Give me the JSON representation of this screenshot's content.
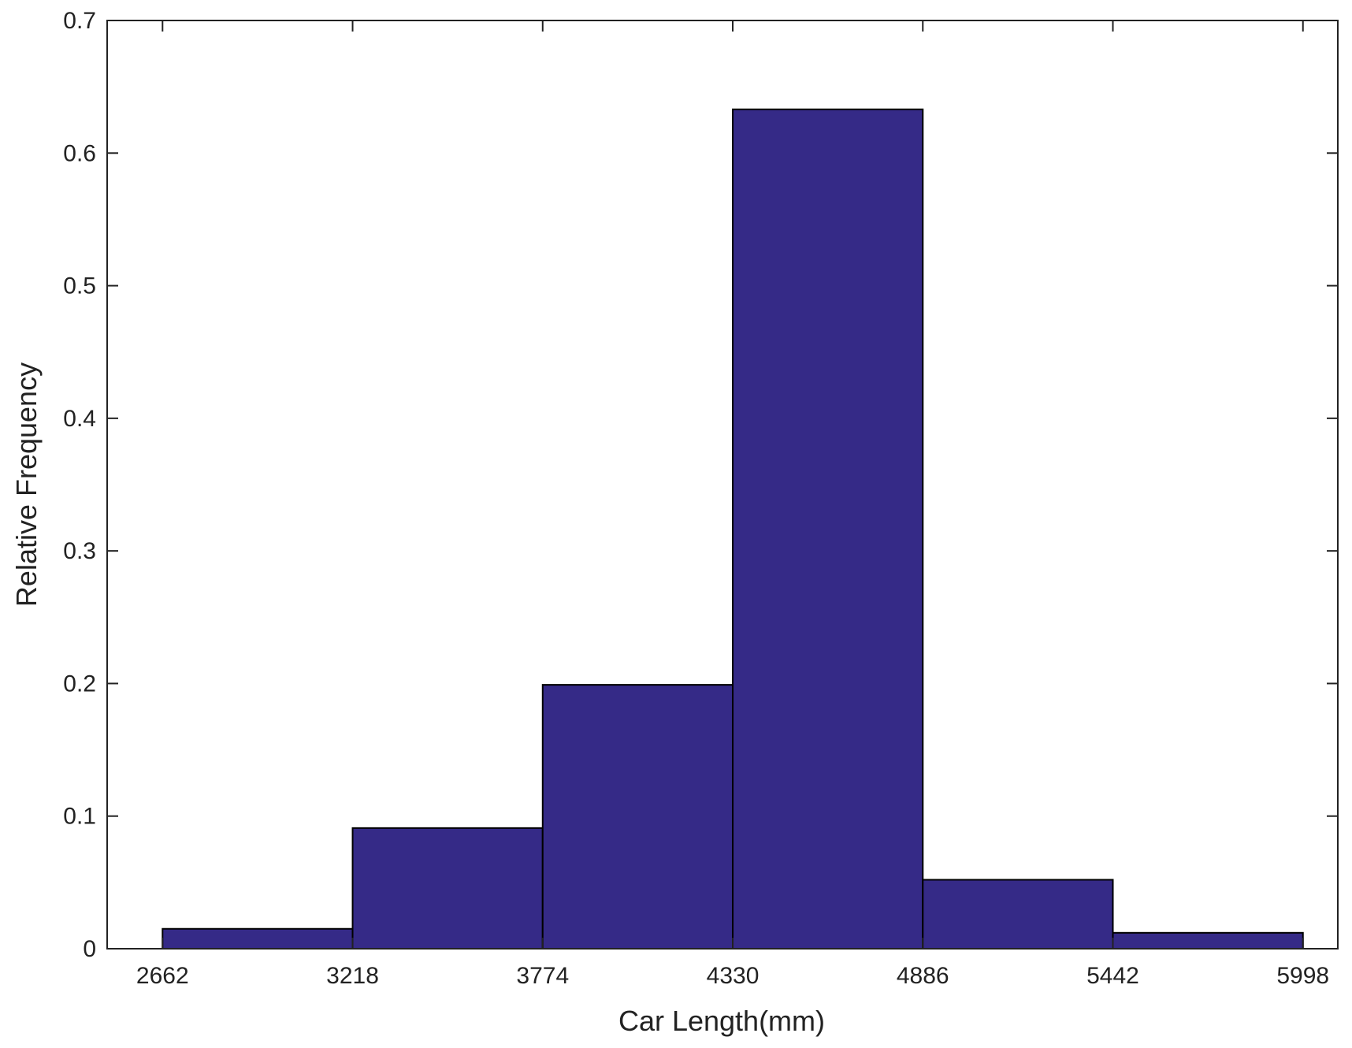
{
  "chart_data": {
    "type": "histogram",
    "x_label": "Car Length(mm)",
    "y_label": "Relative Frequency",
    "bins": [
      2662,
      3218,
      3774,
      4330,
      4886,
      5442,
      5998
    ],
    "values": [
      0.015,
      0.091,
      0.199,
      0.633,
      0.052,
      0.012
    ],
    "color": "#352a87",
    "xlim": [
      2500,
      6100
    ],
    "xticks": [
      2662,
      3218,
      3774,
      4330,
      4886,
      5442,
      5998
    ],
    "ylim": [
      0,
      0.7
    ],
    "yticks": [
      0,
      0.1,
      0.2,
      0.3,
      0.4,
      0.5,
      0.6,
      0.7
    ],
    "grid": false
  }
}
